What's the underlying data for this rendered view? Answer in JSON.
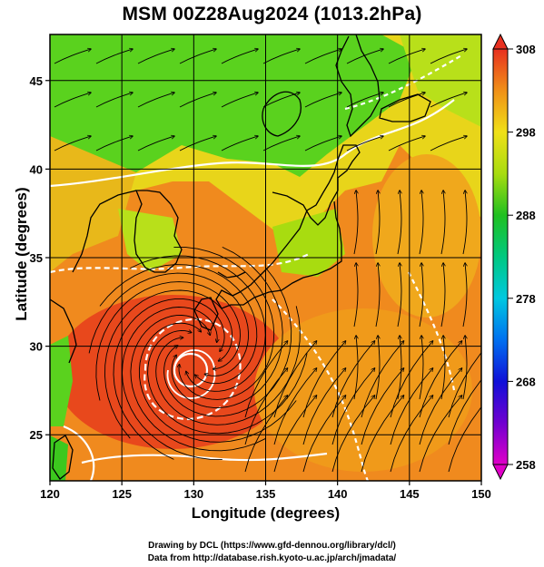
{
  "title": "MSM 00Z28Aug2024 (1013.2hPa)",
  "x_axis": {
    "label": "Longitude (degrees)",
    "ticks": [
      "120",
      "125",
      "130",
      "135",
      "140",
      "145",
      "150"
    ]
  },
  "y_axis": {
    "label": "Latitude  (degrees)",
    "ticks": [
      "25",
      "30",
      "35",
      "40",
      "45"
    ]
  },
  "colorbar": {
    "labels": [
      "308",
      "298",
      "288",
      "278",
      "268",
      "258"
    ],
    "min": 258,
    "max": 308
  },
  "credits": {
    "line1": "Drawing by DCL (https://www.gfd-dennou.org/library/dcl/)",
    "line2": "Data from http://database.rish.kyoto-u.ac.jp/arch/jmadata/"
  },
  "map": {
    "lon_range": [
      120,
      150
    ],
    "lat_range": [
      22.4,
      47.6
    ],
    "field_colors": {
      "warm_red": "#e8481c",
      "orange": "#f08a1e",
      "yellow_orange": "#f2b21c",
      "yellow": "#e8d51a",
      "yellow_green": "#b8e01a",
      "green": "#5ad21e"
    },
    "typhoon_center": {
      "lon": 130.3,
      "lat": 29.6
    }
  },
  "colors": {
    "background": "#ffffff",
    "frame": "#000000",
    "coast": "#000000",
    "contour": "#ffffff"
  }
}
